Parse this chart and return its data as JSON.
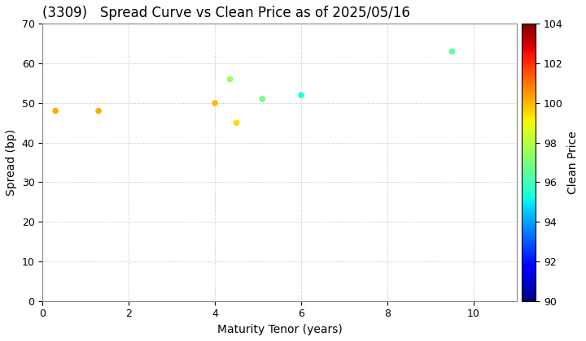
{
  "title": "(3309)   Spread Curve vs Clean Price as of 2025/05/16",
  "xlabel": "Maturity Tenor (years)",
  "ylabel": "Spread (bp)",
  "colorbar_label": "Clean Price",
  "points": [
    {
      "tenor": 0.3,
      "spread": 48,
      "price": 100.2
    },
    {
      "tenor": 1.3,
      "spread": 48,
      "price": 100.2
    },
    {
      "tenor": 4.0,
      "spread": 50,
      "price": 100.0
    },
    {
      "tenor": 4.35,
      "spread": 56,
      "price": 97.5
    },
    {
      "tenor": 4.5,
      "spread": 45,
      "price": 99.5
    },
    {
      "tenor": 5.1,
      "spread": 51,
      "price": 96.8
    },
    {
      "tenor": 6.0,
      "spread": 52,
      "price": 95.5
    },
    {
      "tenor": 9.5,
      "spread": 63,
      "price": 96.5
    }
  ],
  "xlim": [
    0,
    11
  ],
  "ylim": [
    0,
    70
  ],
  "clim": [
    90,
    104
  ],
  "xticks": [
    0,
    2,
    4,
    6,
    8,
    10
  ],
  "yticks": [
    0,
    10,
    20,
    30,
    40,
    50,
    60,
    70
  ],
  "colorbar_ticks": [
    90,
    92,
    94,
    96,
    98,
    100,
    102,
    104
  ],
  "marker_size": 30,
  "background_color": "#ffffff",
  "grid_color": "#bbbbbb",
  "title_fontsize": 12,
  "label_fontsize": 10,
  "tick_fontsize": 9
}
